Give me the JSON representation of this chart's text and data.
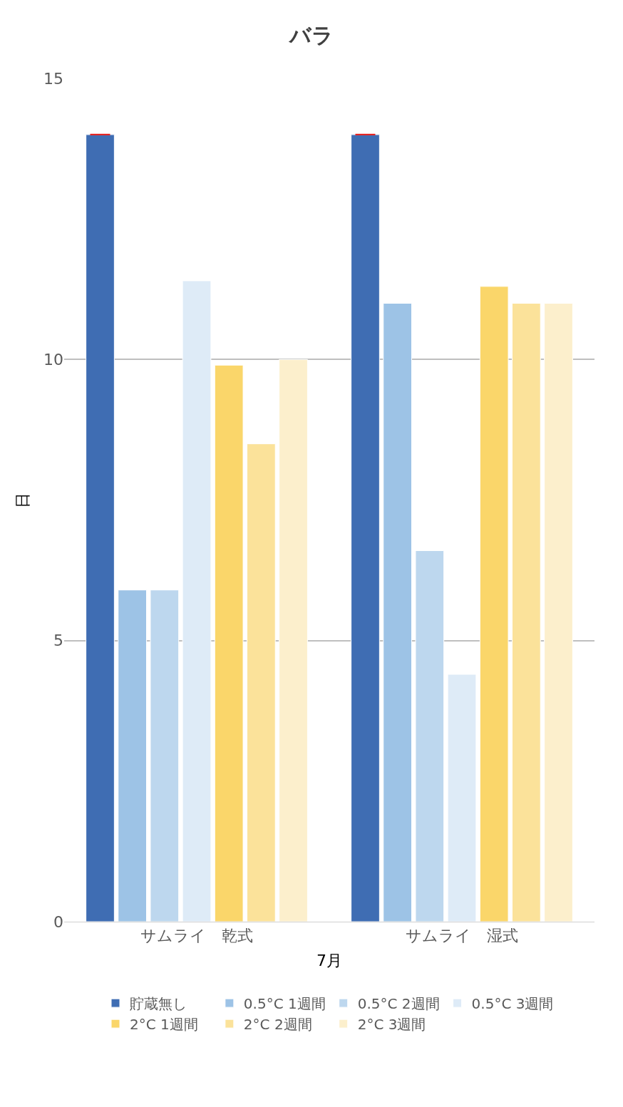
{
  "chart_data": {
    "type": "bar",
    "title": "バラ",
    "xlabel": "7月",
    "ylabel": "日",
    "categories": [
      "サムライ　乾式",
      "サムライ　湿式"
    ],
    "series": [
      {
        "name": "貯蔵無し",
        "color": "#3f6db3",
        "values": [
          14,
          14
        ],
        "errors": [
          0,
          0
        ]
      },
      {
        "name": "0.5°C 1週間",
        "color": "#9dc3e6",
        "values": [
          5.9,
          11.0
        ]
      },
      {
        "name": "0.5°C 2週間",
        "color": "#bdd7ee",
        "values": [
          5.9,
          6.6
        ]
      },
      {
        "name": "0.5°C 3週間",
        "color": "#deebf7",
        "values": [
          11.4,
          4.4
        ]
      },
      {
        "name": "2°C 1週間",
        "color": "#fad66a",
        "values": [
          9.9,
          11.3
        ]
      },
      {
        "name": "2°C 2週間",
        "color": "#fbe29a",
        "values": [
          8.5,
          11.0
        ]
      },
      {
        "name": "2°C 3週間",
        "color": "#fcefcc",
        "values": [
          10.0,
          11.0
        ]
      }
    ],
    "ylim": [
      0,
      15
    ],
    "yticks": [
      0,
      5,
      10,
      15
    ],
    "grid": "y",
    "legend": "bottom"
  }
}
